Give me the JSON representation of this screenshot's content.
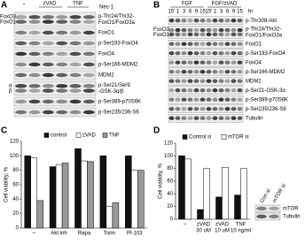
{
  "panel_a": {
    "label": "A",
    "header": {
      "sign": "–",
      "groups": [
        "zVAD",
        "TNF"
      ],
      "treatment": "Nec-1"
    },
    "left_labels": [
      "FoxO3",
      "FoxO1",
      "α",
      "β"
    ],
    "rows": [
      [
        "p-Thr24/Thr32-",
        "FoxO1/FoxO3a"
      ],
      [
        "FoxO1"
      ],
      [
        "p-Ser193-FoxO4"
      ],
      [
        "FoxO4"
      ],
      [
        "p-Ser166-MDM2"
      ],
      [
        "MDM2"
      ],
      [
        "p-Ser21/Ser9",
        "-GSK-3α/β"
      ],
      [
        "p-Ser389-p70S6K"
      ],
      [
        "p-Ser235/236-S6"
      ]
    ]
  },
  "panel_b": {
    "label": "B",
    "header": {
      "groups": [
        "FGF",
        "FGF/zVAD"
      ],
      "times": [
        "15'",
        "1",
        "3",
        "6",
        "9",
        "15",
        "15'",
        "1",
        "3",
        "6",
        "9",
        "15"
      ],
      "unit": "hr"
    },
    "left_labels": [
      "FoxO3",
      "FoxO1"
    ],
    "rows": [
      [
        "p-Thr308-Akt"
      ],
      [
        "p-Thr24/Thr32-",
        "FoxO1/FoxO3a"
      ],
      [
        "FoxO1"
      ],
      [
        "p-Ser193-FoxO4"
      ],
      [
        "FoxO4"
      ],
      [
        "p-Ser166-MDM2"
      ],
      [
        "MDM2"
      ],
      [
        "p-Ser21-GSK-3α"
      ],
      [
        "p-Ser389-p70S6K"
      ],
      [
        "p-Ser235/236-S6"
      ],
      [
        "Tubulin"
      ]
    ]
  },
  "chart_data": [
    {
      "type": "bar",
      "panel": "C",
      "y_label": "Cell viability, %",
      "categories": [
        "–",
        "Akt inh",
        "Rapa",
        "Torin",
        "PI-103"
      ],
      "series": [
        {
          "name": "control",
          "color": "#111111",
          "values": [
            100,
            85,
            110,
            100,
            100
          ]
        },
        {
          "name": "zVAD",
          "color": "#ffffff",
          "values": [
            97,
            88,
            93,
            30,
            80
          ]
        },
        {
          "name": "TNF",
          "color": "#999999",
          "values": [
            38,
            90,
            92,
            35,
            80
          ]
        }
      ],
      "ylim": [
        0,
        120
      ],
      "yticks": [
        0,
        20,
        40,
        60,
        80,
        100,
        120
      ]
    },
    {
      "type": "bar",
      "panel": "D",
      "y_label": "Cell viability, %",
      "categories": [
        "–",
        "zVAD",
        "zVAD",
        "TNF"
      ],
      "category_notes": [
        null,
        "30 uM",
        "10 uM",
        "10 ng/ml"
      ],
      "series": [
        {
          "name": "Control si",
          "color": "#111111",
          "values": [
            100,
            15,
            35,
            38
          ]
        },
        {
          "name": "mTOR si",
          "color": "#ffffff",
          "values": [
            95,
            80,
            82,
            80
          ]
        }
      ],
      "ylim": [
        0,
        120
      ],
      "yticks": [
        0,
        20,
        40,
        60,
        80,
        100,
        120
      ],
      "inset": {
        "columns": [
          "Con si",
          "mTOR si"
        ],
        "rows": [
          "mTOR",
          "Tubulin"
        ]
      }
    }
  ]
}
